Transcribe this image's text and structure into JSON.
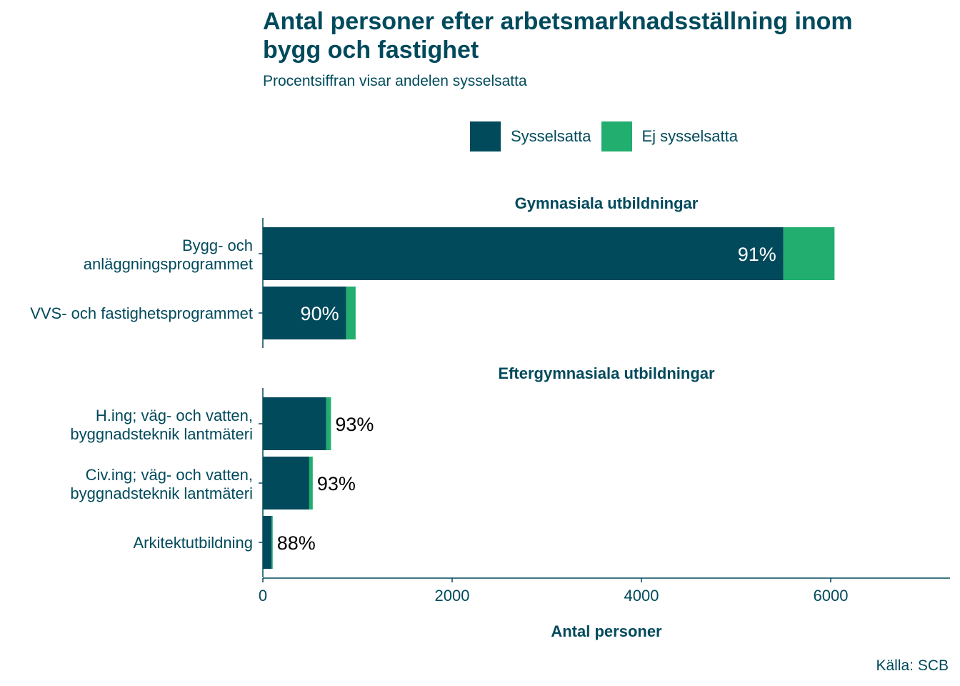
{
  "chart_data": {
    "type": "bar",
    "orientation": "horizontal",
    "stacked": true,
    "title": "Antal personer efter arbetsmarknadsställning inom bygg och fastighet",
    "subtitle": "Procentsiffran visar andelen sysselsatta",
    "xlabel": "Antal personer",
    "source": "Källa: SCB",
    "xlim": [
      0,
      7200
    ],
    "xticks": [
      0,
      2000,
      4000,
      6000
    ],
    "xtick_labels": [
      "0",
      "2000",
      "4000",
      "6000"
    ],
    "legend_position": "top",
    "series": [
      {
        "name": "Sysselsatta",
        "color": "#004a5c"
      },
      {
        "name": "Ej sysselsatta",
        "color": "#21ae6e"
      }
    ],
    "panels": [
      {
        "title": "Gymnasiala utbildningar",
        "categories": [
          {
            "label": [
              "Bygg- och",
              "anläggningsprogrammet"
            ],
            "sysselsatta": 5500,
            "ej_sysselsatta": 540,
            "pct_label": "91%"
          },
          {
            "label": [
              "VVS- och fastighetsprogrammet"
            ],
            "sysselsatta": 880,
            "ej_sysselsatta": 100,
            "pct_label": "90%"
          }
        ]
      },
      {
        "title": "Eftergymnasiala utbildningar",
        "categories": [
          {
            "label": [
              "H.ing; väg- och vatten,",
              "byggnadsteknik lantmäteri"
            ],
            "sysselsatta": 670,
            "ej_sysselsatta": 50,
            "pct_label": "93%"
          },
          {
            "label": [
              "Civ.ing; väg- och vatten,",
              "byggnadsteknik lantmäteri"
            ],
            "sysselsatta": 490,
            "ej_sysselsatta": 37,
            "pct_label": "93%"
          },
          {
            "label": [
              "Arkitektutbildning"
            ],
            "sysselsatta": 92,
            "ej_sysselsatta": 12,
            "pct_label": "88%"
          }
        ]
      }
    ]
  }
}
